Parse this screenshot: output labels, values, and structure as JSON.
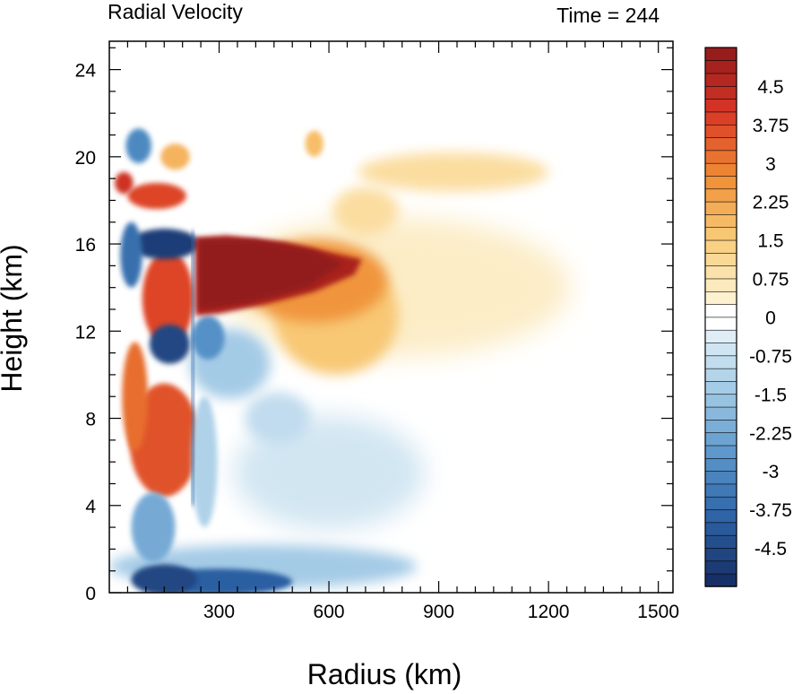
{
  "chart_data": {
    "type": "heatmap",
    "title": "Radial Velocity",
    "subtitle": "Time = 244",
    "xlabel": "Radius (km)",
    "ylabel": "Height (km)",
    "xlim": [
      0,
      1540
    ],
    "ylim": [
      0,
      25.3
    ],
    "x_ticks": [
      300,
      600,
      900,
      1200,
      1500
    ],
    "y_ticks": [
      0,
      4,
      8,
      12,
      16,
      20,
      24
    ],
    "colorbar": {
      "min": -5.25,
      "max": 5.25,
      "interval": 0.25,
      "labels": [
        "4.5",
        "3.75",
        "3",
        "2.25",
        "1.5",
        "0.75",
        "0",
        "-0.75",
        "-1.5",
        "-2.25",
        "-3",
        "-3.75",
        "-4.5"
      ],
      "label_values": [
        4.5,
        3.75,
        3,
        2.25,
        1.5,
        0.75,
        0,
        -0.75,
        -1.5,
        -2.25,
        -3,
        -3.75,
        -4.5
      ],
      "palette_neg": [
        "#152a60",
        "#2b5fa2",
        "#5793c9",
        "#9ec8e4",
        "#e6f1f8"
      ],
      "palette_pos": [
        "#fdf5da",
        "#f9cd7a",
        "#ef8d34",
        "#d93626",
        "#8f1a1b"
      ]
    },
    "features": [
      {
        "name": "upper-level outflow core",
        "r_range_km": [
          240,
          680
        ],
        "z_range_km": [
          12.8,
          16.3
        ],
        "value": 5.0
      },
      {
        "name": "broad outflow layer",
        "r_range_km": [
          300,
          1250
        ],
        "z_range_km": [
          9.5,
          16.5
        ],
        "value": 1.0
      },
      {
        "name": "secondary outflow layer",
        "r_range_km": [
          700,
          1180
        ],
        "z_range_km": [
          18.5,
          20.3
        ],
        "value": 1.0
      },
      {
        "name": "inner-core inflow",
        "r_range_km": [
          20,
          210
        ],
        "z_range_km": [
          15.2,
          17.0
        ],
        "value": -4.5
      },
      {
        "name": "inner-core inflow",
        "r_range_km": [
          100,
          220
        ],
        "z_range_km": [
          10.5,
          12.3
        ],
        "value": -4.0
      },
      {
        "name": "boundary-layer inflow",
        "r_range_km": [
          60,
          1100
        ],
        "z_range_km": [
          0,
          2.2
        ],
        "value": -2.5
      },
      {
        "name": "inner-core outflow",
        "r_range_km": [
          20,
          240
        ],
        "z_range_km": [
          4.5,
          9.0
        ],
        "value": 3.5
      }
    ]
  }
}
